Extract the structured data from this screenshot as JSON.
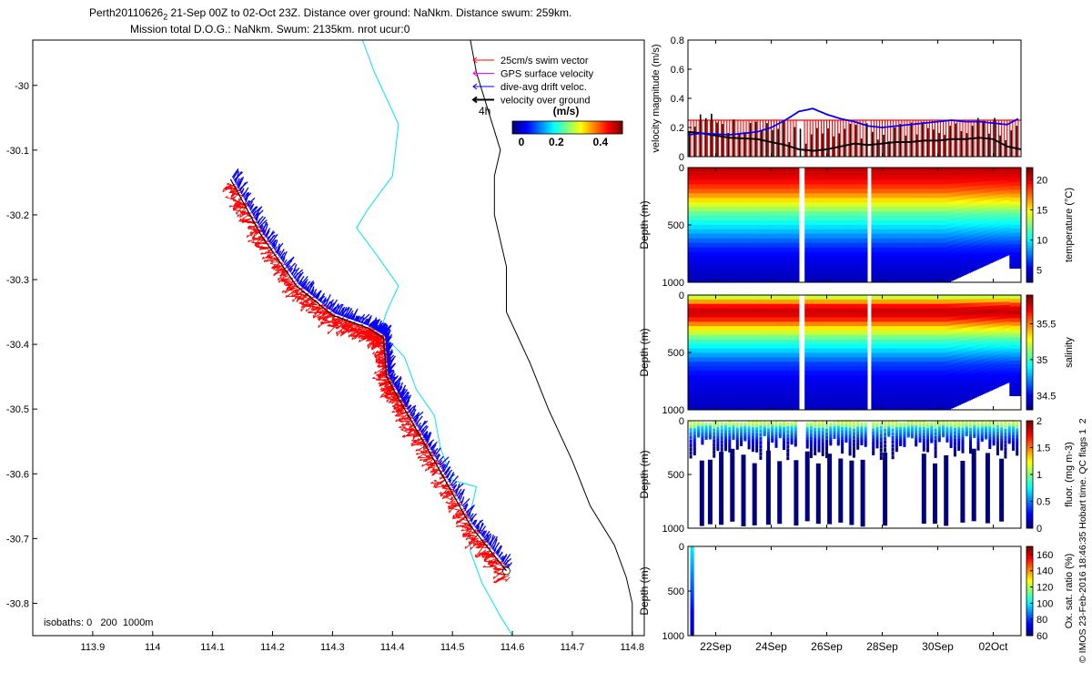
{
  "title": {
    "line1_pre": "Perth20110626",
    "line1_sub": "2",
    "line1_post": " 21-Sep 00Z to 02-Oct 23Z. Distance over ground: NaNkm. Distance swum: 259km.",
    "line2": "Mission total D.O.G.: NaNkm. Swum: 2135km. nrot ucur:0"
  },
  "colors": {
    "swim": "#ff0000",
    "gps": "#ff00ff",
    "drift": "#0000ff",
    "ground": "#000000",
    "isobath_200": "#00e5ee",
    "isobath_1000": "#000000"
  },
  "legend": {
    "items": [
      {
        "label": "25cm/s swim vector",
        "color": "#ff0000"
      },
      {
        "label": "GPS surface velocity",
        "color": "#ff00ff"
      },
      {
        "label": "dive-avg drift veloc.",
        "color": "#0000ff"
      },
      {
        "label": "velocity over ground",
        "color": "#000000"
      }
    ],
    "time_tag": "4h",
    "colorbar_label": "(m/s)",
    "colorbar_ticks": [
      "0",
      "0.2",
      "0.4"
    ]
  },
  "isobath_label": "isobaths: 0   200  1000m",
  "side_note": "© IMOS 23-Feb-2016 18:46:35 Hobart time. QC flags 1  2",
  "chart_data": [
    {
      "id": "track_map",
      "type": "line",
      "xlim": [
        113.8,
        114.82
      ],
      "ylim": [
        -30.85,
        -29.93
      ],
      "x_ticks": [
        "113.9",
        "114",
        "114.1",
        "114.2",
        "114.3",
        "114.4",
        "114.5",
        "114.6",
        "114.7",
        "114.8"
      ],
      "y_ticks": [
        "-30",
        "-30.1",
        "-30.2",
        "-30.3",
        "-30.4",
        "-30.5",
        "-30.6",
        "-30.7",
        "-30.8"
      ],
      "track": {
        "lon": [
          114.13,
          114.18,
          114.24,
          114.3,
          114.36,
          114.385,
          114.39,
          114.42,
          114.47,
          114.53,
          114.59
        ],
        "lat": [
          -30.145,
          -30.23,
          -30.31,
          -30.355,
          -30.375,
          -30.39,
          -30.45,
          -30.5,
          -30.58,
          -30.68,
          -30.75
        ]
      },
      "isobath_200": {
        "lon": [
          114.35,
          114.37,
          114.41,
          114.4,
          114.36,
          114.34,
          114.38,
          114.41,
          114.39,
          114.38,
          114.42,
          114.44,
          114.47,
          114.48,
          114.5,
          114.54,
          114.53,
          114.53,
          114.55,
          114.58,
          114.6
        ],
        "lat": [
          -29.93,
          -29.98,
          -30.06,
          -30.14,
          -30.19,
          -30.22,
          -30.27,
          -30.31,
          -30.35,
          -30.38,
          -30.42,
          -30.47,
          -30.51,
          -30.56,
          -30.61,
          -30.62,
          -30.66,
          -30.72,
          -30.77,
          -30.82,
          -30.85
        ]
      },
      "isobath_1000": {
        "lon": [
          114.53,
          114.54,
          114.56,
          114.58,
          114.57,
          114.57,
          114.59,
          114.59,
          114.63,
          114.66,
          114.7,
          114.73,
          114.77,
          114.79,
          114.8,
          114.8
        ],
        "lat": [
          -29.93,
          -29.98,
          -30.04,
          -30.1,
          -30.14,
          -30.2,
          -30.28,
          -30.35,
          -30.43,
          -30.5,
          -30.58,
          -30.65,
          -30.71,
          -30.76,
          -30.8,
          -30.85
        ]
      }
    },
    {
      "id": "velocity_magnitude",
      "type": "bar",
      "ylabel": "velocity magnitude (m/s)",
      "ylim": [
        0,
        0.8
      ],
      "y_ticks": [
        "0",
        "0.2",
        "0.4",
        "0.6",
        "0.8"
      ],
      "series": [
        {
          "name": "25cm/s swim vector",
          "color": "#ff0000",
          "value": 0.25
        },
        {
          "name": "dive-avg drift veloc.",
          "color": "#0000ff",
          "days": [
            21.0,
            21.5,
            22.5,
            23.5,
            24.0,
            24.5,
            25.0,
            25.5,
            26.0,
            26.5,
            27.0,
            27.5,
            28.0,
            28.5,
            29.0,
            29.5,
            30.0,
            30.5,
            31.0,
            31.5,
            32.0,
            32.5,
            33.0
          ],
          "values": [
            0.15,
            0.16,
            0.15,
            0.17,
            0.2,
            0.25,
            0.31,
            0.33,
            0.29,
            0.26,
            0.24,
            0.21,
            0.2,
            0.21,
            0.22,
            0.23,
            0.24,
            0.25,
            0.24,
            0.24,
            0.23,
            0.22,
            0.27
          ]
        },
        {
          "name": "velocity over ground",
          "color": "#000000",
          "days": [
            21.0,
            21.5,
            22.5,
            23.5,
            24.0,
            24.5,
            25.0,
            25.5,
            26.0,
            26.5,
            27.0,
            27.5,
            28.0,
            28.5,
            29.0,
            29.5,
            30.0,
            30.5,
            31.0,
            31.5,
            32.0,
            32.5,
            33.0
          ],
          "values": [
            0.17,
            0.16,
            0.13,
            0.12,
            0.1,
            0.08,
            0.05,
            0.04,
            0.05,
            0.07,
            0.09,
            0.08,
            0.09,
            0.1,
            0.1,
            0.11,
            0.11,
            0.12,
            0.12,
            0.13,
            0.12,
            0.07,
            0.05
          ]
        }
      ]
    },
    {
      "id": "temperature_section",
      "type": "heatmap",
      "ylabel": "Depth (m)",
      "cbar_label": "temperature (°C)",
      "ylim": [
        1000,
        0
      ],
      "y_ticks": [
        "0",
        "500",
        "1000"
      ],
      "cbar_ticks": [
        "5",
        "10",
        "15",
        "20"
      ],
      "cbar_range": [
        3,
        22
      ],
      "data_gaps_days": [
        [
          25.0,
          25.2
        ],
        [
          27.45,
          27.6
        ]
      ],
      "profile": {
        "depth": [
          0,
          100,
          200,
          300,
          400,
          500,
          600,
          700,
          800,
          1000
        ],
        "value": [
          21,
          20,
          18,
          15,
          12,
          10,
          8,
          6,
          5,
          4
        ]
      }
    },
    {
      "id": "salinity_section",
      "type": "heatmap",
      "ylabel": "Depth (m)",
      "cbar_label": "salinity",
      "ylim": [
        1000,
        0
      ],
      "y_ticks": [
        "0",
        "500",
        "1000"
      ],
      "cbar_ticks": [
        "34.5",
        "35",
        "35.5"
      ],
      "cbar_range": [
        34.3,
        35.9
      ],
      "data_gaps_days": [
        [
          25.0,
          25.2
        ],
        [
          27.45,
          27.6
        ]
      ],
      "profile": {
        "depth": [
          0,
          50,
          100,
          150,
          200,
          300,
          400,
          500,
          600,
          700,
          800,
          1000
        ],
        "value": [
          35.1,
          35.4,
          35.7,
          35.8,
          35.7,
          35.3,
          35.0,
          34.8,
          34.6,
          34.5,
          34.45,
          34.4
        ]
      }
    },
    {
      "id": "fluorescence_section",
      "type": "scatter",
      "ylabel": "Depth (m)",
      "cbar_label": "fluor. (mg m-3)",
      "ylim": [
        1000,
        0
      ],
      "y_ticks": [
        "0",
        "500",
        "1000"
      ],
      "cbar_ticks": [
        "0",
        "0.5",
        "1",
        "1.5",
        "2"
      ],
      "cbar_range": [
        0,
        2
      ]
    },
    {
      "id": "oxygen_section",
      "type": "scatter",
      "ylabel": "Depth (m)",
      "cbar_label": "Ox. sat. ratio (%)",
      "ylim": [
        1000,
        0
      ],
      "y_ticks": [
        "0",
        "500",
        "1000"
      ],
      "cbar_ticks": [
        "60",
        "80",
        "100",
        "120",
        "140",
        "160"
      ],
      "cbar_range": [
        60,
        170
      ],
      "x_ticks": [
        "22Sep",
        "24Sep",
        "26Sep",
        "28Sep",
        "30Sep",
        "02Oct"
      ],
      "x_tick_days": [
        22,
        24,
        26,
        28,
        30,
        32
      ],
      "xlim_days": [
        21.0,
        33.0
      ]
    }
  ]
}
